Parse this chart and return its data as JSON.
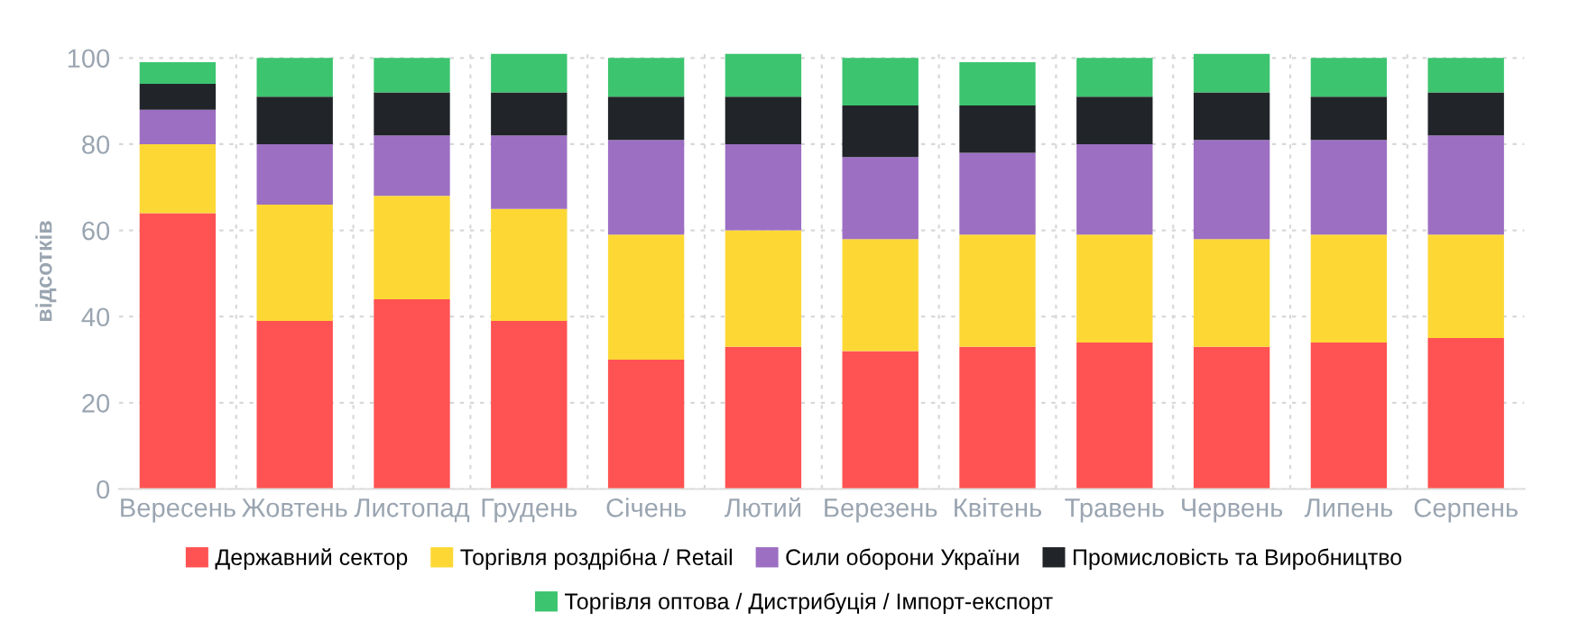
{
  "chart_data": {
    "type": "bar",
    "stacked": true,
    "ylabel": "відсотків",
    "categories": [
      "Вересень",
      "Жовтень",
      "Листопад",
      "Грудень",
      "Січень",
      "Лютий",
      "Березень",
      "Квітень",
      "Травень",
      "Червень",
      "Липень",
      "Серпень"
    ],
    "series": [
      {
        "name": "Державний сектор",
        "color": "#ff5252",
        "values": [
          64,
          39,
          44,
          39,
          30,
          33,
          32,
          33,
          34,
          33,
          34,
          35
        ]
      },
      {
        "name": "Торгівля роздрібна / Retail",
        "color": "#fdd835",
        "values": [
          16,
          27,
          24,
          26,
          29,
          27,
          26,
          26,
          25,
          25,
          25,
          24
        ]
      },
      {
        "name": "Сили оборони України",
        "color": "#9c6fc3",
        "values": [
          8,
          14,
          14,
          17,
          22,
          20,
          19,
          19,
          21,
          23,
          22,
          23
        ]
      },
      {
        "name": "Промисловість та Виробництво",
        "color": "#212529",
        "values": [
          6,
          11,
          10,
          10,
          10,
          11,
          12,
          11,
          11,
          11,
          10,
          10
        ]
      },
      {
        "name": "Торгівля оптова / Дистрибуція / Імпорт-експорт",
        "color": "#3cc46f",
        "values": [
          5,
          9,
          8,
          9,
          9,
          10,
          11,
          10,
          9,
          9,
          9,
          8
        ]
      }
    ],
    "ylim": [
      0,
      101
    ],
    "yticks": [
      0,
      20,
      40,
      60,
      80,
      100
    ],
    "grid": true,
    "legend": "bottom"
  }
}
